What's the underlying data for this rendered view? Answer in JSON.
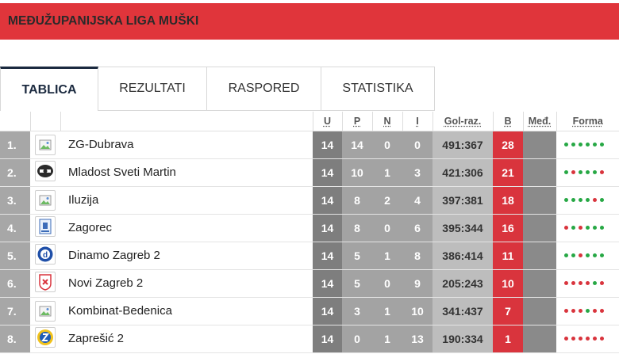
{
  "league": {
    "title": "MEĐUŽUPANIJSKA LIGA MUŠKI"
  },
  "tabs": [
    {
      "label": "TABLICA",
      "active": true
    },
    {
      "label": "REZULTATI",
      "active": false
    },
    {
      "label": "RASPORED",
      "active": false
    },
    {
      "label": "STATISTIKA",
      "active": false
    }
  ],
  "table": {
    "headers": {
      "played": "U",
      "won": "P",
      "drawn": "N",
      "lost": "I",
      "goals": "Gol-raz.",
      "points": "B",
      "matches": "Međ.",
      "form": "Forma"
    },
    "rows": [
      {
        "pos": "1.",
        "team": "ZG-Dubrava",
        "logo": "broken-image-icon",
        "played": "14",
        "won": "14",
        "drawn": "0",
        "lost": "0",
        "goals": "491:367",
        "points": "28",
        "form": [
          "W",
          "W",
          "W",
          "W",
          "W",
          "W"
        ]
      },
      {
        "pos": "2.",
        "team": "Mladost Sveti Martin",
        "logo": "mladost-crest-icon",
        "played": "14",
        "won": "10",
        "drawn": "1",
        "lost": "3",
        "goals": "421:306",
        "points": "21",
        "form": [
          "W",
          "L",
          "W",
          "W",
          "W",
          "L"
        ]
      },
      {
        "pos": "3.",
        "team": "Iluzija",
        "logo": "broken-image-icon",
        "played": "14",
        "won": "8",
        "drawn": "2",
        "lost": "4",
        "goals": "397:381",
        "points": "18",
        "form": [
          "W",
          "W",
          "W",
          "W",
          "L",
          "W"
        ]
      },
      {
        "pos": "4.",
        "team": "Zagorec",
        "logo": "zagorec-crest-icon",
        "played": "14",
        "won": "8",
        "drawn": "0",
        "lost": "6",
        "goals": "395:344",
        "points": "16",
        "form": [
          "L",
          "W",
          "L",
          "W",
          "W",
          "W"
        ]
      },
      {
        "pos": "5.",
        "team": "Dinamo Zagreb 2",
        "logo": "dinamo-crest-icon",
        "played": "14",
        "won": "5",
        "drawn": "1",
        "lost": "8",
        "goals": "386:414",
        "points": "11",
        "form": [
          "W",
          "W",
          "L",
          "W",
          "W",
          "W"
        ]
      },
      {
        "pos": "6.",
        "team": "Novi Zagreb 2",
        "logo": "novi-zagreb-crest-icon",
        "played": "14",
        "won": "5",
        "drawn": "0",
        "lost": "9",
        "goals": "205:243",
        "points": "10",
        "form": [
          "L",
          "L",
          "L",
          "L",
          "W",
          "L"
        ]
      },
      {
        "pos": "7.",
        "team": "Kombinat-Bedenica",
        "logo": "broken-image-icon",
        "played": "14",
        "won": "3",
        "drawn": "1",
        "lost": "10",
        "goals": "341:437",
        "points": "7",
        "form": [
          "L",
          "L",
          "L",
          "W",
          "L",
          "L"
        ]
      },
      {
        "pos": "8.",
        "team": "Zaprešić 2",
        "logo": "zapresic-crest-icon",
        "played": "14",
        "won": "0",
        "drawn": "1",
        "lost": "13",
        "goals": "190:334",
        "points": "1",
        "form": [
          "L",
          "L",
          "L",
          "L",
          "L",
          "L"
        ]
      }
    ]
  },
  "colors": {
    "accent": "#e0353b",
    "win": "#27a845",
    "loss": "#d9343d",
    "points_bg": "#d9343d"
  }
}
